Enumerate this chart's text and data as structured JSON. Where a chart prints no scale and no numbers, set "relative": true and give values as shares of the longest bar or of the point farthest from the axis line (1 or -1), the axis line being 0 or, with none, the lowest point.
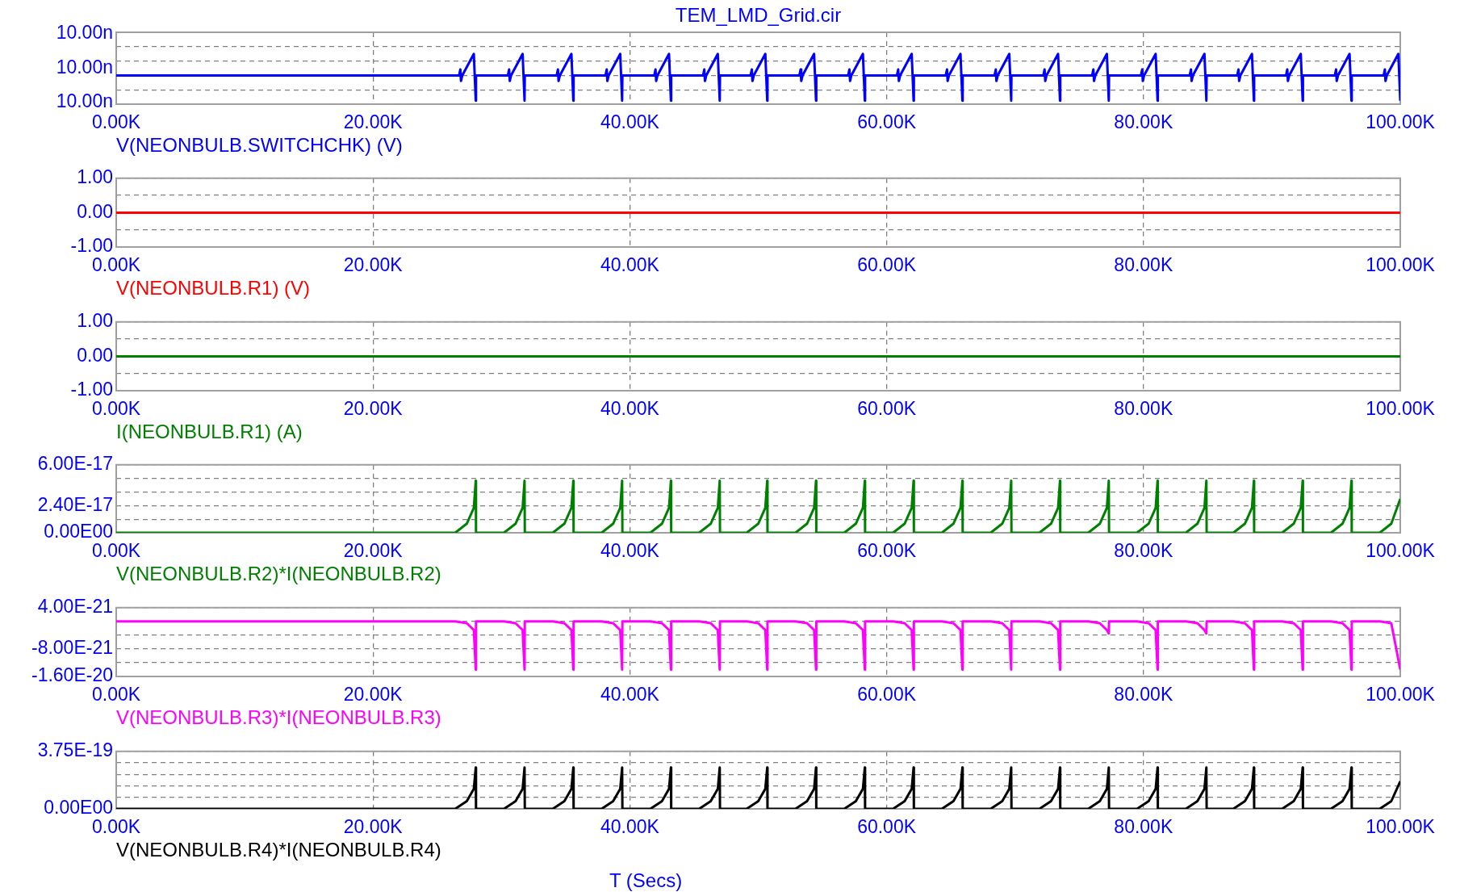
{
  "chart_data": [
    {
      "type": "line",
      "title": "TEM_LMD_Grid.cir",
      "relative": true,
      "annotations": [
        "10.00n",
        "10.00n",
        "10.00n"
      ],
      "grid": true,
      "legend": "bottom left",
      "marker": "none",
      "xlim": [
        0,
        100000
      ],
      "xticks": [
        {
          "value": 0,
          "label": "0.00K"
        },
        {
          "value": 20000,
          "label": "20.00K"
        },
        {
          "value": 40000,
          "label": "40.00K"
        },
        {
          "value": 60000,
          "label": "60.00K"
        },
        {
          "value": 80000,
          "label": "80.00K"
        },
        {
          "value": 100000,
          "label": "100.00K"
        }
      ],
      "x": [
        0,
        26700,
        26800,
        26850,
        26950,
        27850,
        28000,
        28020,
        30500,
        30600,
        30650,
        30750,
        31650,
        31800,
        31820,
        34300,
        34400,
        34450,
        34550,
        35450,
        35600,
        35620,
        38100,
        38200,
        38250,
        38350,
        39250,
        39400,
        39420,
        41900,
        42000,
        42050,
        42150,
        43050,
        43200,
        43220,
        45700,
        45800,
        45850,
        45950,
        46850,
        47000,
        47020,
        49400,
        49500,
        49550,
        49650,
        50550,
        50700,
        50720,
        53200,
        53300,
        53350,
        53450,
        54350,
        54500,
        54520,
        57000,
        57100,
        57150,
        57250,
        58150,
        58300,
        58320,
        60800,
        60900,
        60950,
        61050,
        61950,
        62100,
        62120,
        64600,
        64700,
        64750,
        64850,
        65750,
        65900,
        65920,
        68400,
        68500,
        68550,
        68650,
        69550,
        69700,
        69720,
        72200,
        72300,
        72350,
        72450,
        73350,
        73500,
        73520,
        76000,
        76100,
        76150,
        76250,
        77150,
        77300,
        77320,
        79800,
        79900,
        79950,
        80050,
        80950,
        81100,
        81120,
        83600,
        83700,
        83750,
        83850,
        84750,
        84900,
        84920,
        87300,
        87400,
        87450,
        87550,
        88450,
        88600,
        88620,
        91100,
        91200,
        91250,
        91350,
        92250,
        92400,
        92420,
        94900,
        95000,
        95050,
        95150,
        96050,
        96200,
        96220,
        98700,
        98800,
        98850,
        98950,
        99850,
        100000
      ],
      "series": [
        {
          "name": "V(NEONBULB.SWITCHCHK) (V)",
          "color": "#0000ff",
          "values": [
            0.57,
            0.57,
            0.69,
            0.46,
            0.57,
            1,
            0.07,
            0.57,
            0.57,
            0.69,
            0.46,
            0.57,
            1,
            0.07,
            0.57,
            0.57,
            0.69,
            0.46,
            0.57,
            1,
            0.07,
            0.57,
            0.57,
            0.69,
            0.46,
            0.57,
            1,
            0.07,
            0.57,
            0.57,
            0.69,
            0.46,
            0.57,
            1,
            0.07,
            0.57,
            0.57,
            0.69,
            0.46,
            0.57,
            1,
            0.07,
            0.57,
            0.57,
            0.69,
            0.46,
            0.57,
            1,
            0.07,
            0.57,
            0.57,
            0.69,
            0.46,
            0.57,
            1,
            0.07,
            0.57,
            0.57,
            0.69,
            0.46,
            0.57,
            1,
            0.07,
            0.57,
            0.57,
            0.69,
            0.46,
            0.57,
            1,
            0.07,
            0.57,
            0.57,
            0.69,
            0.46,
            0.57,
            1,
            0.07,
            0.57,
            0.57,
            0.69,
            0.46,
            0.57,
            1,
            0.07,
            0.57,
            0.57,
            0.69,
            0.46,
            0.57,
            1,
            0.07,
            0.57,
            0.57,
            0.69,
            0.46,
            0.57,
            1,
            0.07,
            0.57,
            0.57,
            0.69,
            0.46,
            0.57,
            1,
            0.07,
            0.57,
            0.57,
            0.69,
            0.46,
            0.57,
            1,
            0.07,
            0.57,
            0.57,
            0.69,
            0.46,
            0.57,
            1,
            0.07,
            0.57,
            0.57,
            0.69,
            0.46,
            0.57,
            1,
            0.07,
            0.57,
            0.57,
            0.69,
            0.46,
            0.57,
            1,
            0.07,
            0.57,
            0.57,
            0.69,
            0.46,
            0.57,
            1,
            0.07
          ]
        }
      ]
    },
    {
      "type": "line",
      "grid": true,
      "legend": "bottom left",
      "marker": "none",
      "xlim": [
        0,
        100000
      ],
      "xticks": [
        {
          "value": 0,
          "label": "0.00K"
        },
        {
          "value": 20000,
          "label": "20.00K"
        },
        {
          "value": 40000,
          "label": "40.00K"
        },
        {
          "value": 60000,
          "label": "60.00K"
        },
        {
          "value": 80000,
          "label": "80.00K"
        },
        {
          "value": 100000,
          "label": "100.00K"
        }
      ],
      "ylim": [
        -1,
        1
      ],
      "yticks": [
        {
          "value": -1,
          "label": "-1.00"
        },
        {
          "value": -0.5,
          "label": null
        },
        {
          "value": 0,
          "label": "0.00"
        },
        {
          "value": 0.5,
          "label": null
        },
        {
          "value": 1,
          "label": "1.00"
        }
      ],
      "x": [
        0,
        100000
      ],
      "series": [
        {
          "name": "V(NEONBULB.R1) (V)",
          "color": "#ff0000",
          "values": [
            0,
            0
          ]
        }
      ]
    },
    {
      "type": "line",
      "grid": true,
      "legend": "bottom left",
      "marker": "none",
      "xlim": [
        0,
        100000
      ],
      "xticks": [
        {
          "value": 0,
          "label": "0.00K"
        },
        {
          "value": 20000,
          "label": "20.00K"
        },
        {
          "value": 40000,
          "label": "40.00K"
        },
        {
          "value": 60000,
          "label": "60.00K"
        },
        {
          "value": 80000,
          "label": "80.00K"
        },
        {
          "value": 100000,
          "label": "100.00K"
        }
      ],
      "ylim": [
        -1,
        1
      ],
      "yticks": [
        {
          "value": -1,
          "label": "-1.00"
        },
        {
          "value": -0.5,
          "label": null
        },
        {
          "value": 0,
          "label": "0.00"
        },
        {
          "value": 0.5,
          "label": null
        },
        {
          "value": 1,
          "label": "1.00"
        }
      ],
      "x": [
        0,
        100000
      ],
      "series": [
        {
          "name": "I(NEONBULB.R1) (A)",
          "color": "#008000",
          "values": [
            0,
            0
          ]
        }
      ]
    },
    {
      "type": "line",
      "grid": true,
      "legend": "bottom left",
      "marker": "none",
      "xlim": [
        0,
        100000
      ],
      "xticks": [
        {
          "value": 0,
          "label": "0.00K"
        },
        {
          "value": 20000,
          "label": "20.00K"
        },
        {
          "value": 40000,
          "label": "40.00K"
        },
        {
          "value": 60000,
          "label": "60.00K"
        },
        {
          "value": 80000,
          "label": "80.00K"
        },
        {
          "value": 100000,
          "label": "100.00K"
        }
      ],
      "ylim": [
        0,
        6e-17
      ],
      "yticks": [
        {
          "value": 0,
          "label": "0.00E00"
        },
        {
          "value": 1.2e-17,
          "label": null
        },
        {
          "value": 2.4e-17,
          "label": "2.40E-17"
        },
        {
          "value": 3.6e-17,
          "label": null
        },
        {
          "value": 4.8e-17,
          "label": null
        },
        {
          "value": 6e-17,
          "label": "6.00E-17"
        }
      ],
      "x": [
        0,
        26400,
        27300,
        27850,
        28000,
        28020,
        30200,
        31100,
        31650,
        31800,
        31820,
        34000,
        34900,
        35450,
        35600,
        35620,
        37800,
        38700,
        39250,
        39400,
        39420,
        41600,
        42500,
        43050,
        43200,
        43220,
        45400,
        46300,
        46850,
        47000,
        47020,
        49100,
        50000,
        50550,
        50700,
        50720,
        52900,
        53800,
        54350,
        54500,
        54520,
        56700,
        57600,
        58150,
        58300,
        58320,
        60500,
        61400,
        61950,
        62100,
        62120,
        64300,
        65200,
        65750,
        65900,
        65920,
        68100,
        69000,
        69550,
        69700,
        69720,
        71900,
        72800,
        73350,
        73500,
        73520,
        75700,
        76600,
        77150,
        77300,
        77320,
        79500,
        80400,
        80950,
        81100,
        81120,
        83300,
        84200,
        84750,
        84900,
        84920,
        87000,
        87900,
        88450,
        88600,
        88620,
        90800,
        91700,
        92250,
        92400,
        92420,
        94600,
        95500,
        96050,
        96200,
        96220,
        98400,
        99300,
        100000
      ],
      "series": [
        {
          "name": "V(NEONBULB.R2)*I(NEONBULB.R2)",
          "color": "#008000",
          "values": [
            0,
            0,
            8e-18,
            2.2e-17,
            4.6e-17,
            0,
            0,
            8e-18,
            2.2e-17,
            4.6e-17,
            0,
            0,
            8e-18,
            2.2e-17,
            4.6e-17,
            0,
            0,
            8e-18,
            2.2e-17,
            4.6e-17,
            0,
            0,
            8e-18,
            2.2e-17,
            4.6e-17,
            0,
            0,
            8e-18,
            2.2e-17,
            4.6e-17,
            0,
            0,
            8e-18,
            2.2e-17,
            4.6e-17,
            0,
            0,
            8e-18,
            2.2e-17,
            4.6e-17,
            0,
            0,
            8e-18,
            2.2e-17,
            4.6e-17,
            0,
            0,
            8e-18,
            2.2e-17,
            4.6e-17,
            0,
            0,
            8e-18,
            2.2e-17,
            4.6e-17,
            0,
            0,
            8e-18,
            2.2e-17,
            4.6e-17,
            0,
            0,
            8e-18,
            2.2e-17,
            4.6e-17,
            0,
            0,
            8e-18,
            2.2e-17,
            4.6e-17,
            0,
            0,
            8e-18,
            2.2e-17,
            4.6e-17,
            0,
            0,
            8e-18,
            2.2e-17,
            4.6e-17,
            0,
            0,
            8e-18,
            2.2e-17,
            4.6e-17,
            0,
            0,
            8e-18,
            2.2e-17,
            4.6e-17,
            0,
            0,
            8e-18,
            2.2e-17,
            4.6e-17,
            0,
            0,
            8e-18,
            3e-17
          ]
        }
      ]
    },
    {
      "type": "line",
      "grid": true,
      "legend": "bottom left",
      "marker": "none",
      "xlim": [
        0,
        100000
      ],
      "xticks": [
        {
          "value": 0,
          "label": "0.00K"
        },
        {
          "value": 20000,
          "label": "20.00K"
        },
        {
          "value": 40000,
          "label": "40.00K"
        },
        {
          "value": 60000,
          "label": "60.00K"
        },
        {
          "value": 80000,
          "label": "80.00K"
        },
        {
          "value": 100000,
          "label": "100.00K"
        }
      ],
      "ylim": [
        -1.6e-20,
        4e-21
      ],
      "yticks": [
        {
          "value": -1.6e-20,
          "label": "-1.60E-20"
        },
        {
          "value": -1.2e-20,
          "label": null
        },
        {
          "value": -8e-21,
          "label": "-8.00E-21"
        },
        {
          "value": -4e-21,
          "label": null
        },
        {
          "value": 0,
          "label": null
        },
        {
          "value": 4e-21,
          "label": "4.00E-21"
        }
      ],
      "x": [
        0,
        26400,
        27300,
        27850,
        28000,
        28020,
        30200,
        31100,
        31650,
        31800,
        31820,
        34000,
        34900,
        35450,
        35600,
        35620,
        37800,
        38700,
        39250,
        39400,
        39420,
        41600,
        42500,
        43050,
        43200,
        43220,
        45400,
        46300,
        46850,
        47000,
        47020,
        49100,
        50000,
        50550,
        50700,
        50720,
        52900,
        53800,
        54350,
        54500,
        54520,
        56700,
        57600,
        58150,
        58300,
        58320,
        60500,
        61400,
        61950,
        62100,
        62120,
        64300,
        65200,
        65750,
        65900,
        65920,
        68100,
        69000,
        69550,
        69700,
        69720,
        71900,
        72800,
        73350,
        73500,
        73520,
        75700,
        76600,
        77150,
        77300,
        77320,
        79500,
        80400,
        80950,
        81100,
        81120,
        83300,
        84200,
        84750,
        84900,
        84920,
        87000,
        87900,
        88450,
        88600,
        88620,
        90800,
        91700,
        92250,
        92400,
        92420,
        94600,
        95500,
        96050,
        96200,
        96220,
        98400,
        99300,
        100000
      ],
      "series": [
        {
          "name": "V(NEONBULB.R3)*I(NEONBULB.R3)",
          "color": "#ff00ff",
          "values": [
            0,
            0,
            -5e-22,
            -2.5e-21,
            -1.4e-20,
            0,
            0,
            -5e-22,
            -2.5e-21,
            -1.4e-20,
            0,
            0,
            -5e-22,
            -2.5e-21,
            -1.4e-20,
            0,
            0,
            -5e-22,
            -2.5e-21,
            -1.4e-20,
            0,
            0,
            -5e-22,
            -2.5e-21,
            -1.4e-20,
            0,
            0,
            -5e-22,
            -2.5e-21,
            -1.4e-20,
            0,
            0,
            -5e-22,
            -2.5e-21,
            -1.4e-20,
            0,
            0,
            -5e-22,
            -2.5e-21,
            -1.4e-20,
            0,
            0,
            -5e-22,
            -2.5e-21,
            -1.4e-20,
            0,
            0,
            -5e-22,
            -2.5e-21,
            -1.4e-20,
            0,
            0,
            -5e-22,
            -2.5e-21,
            -1.4e-20,
            0,
            0,
            -5e-22,
            -2.5e-21,
            -1.4e-20,
            0,
            0,
            -5e-22,
            -2.5e-21,
            -1.4e-20,
            0,
            0,
            -5e-22,
            -2.5e-21,
            -3.5e-21,
            0,
            0,
            -5e-22,
            -2.5e-21,
            -1.4e-20,
            0,
            0,
            -5e-22,
            -2.5e-21,
            -3.5e-21,
            0,
            0,
            -5e-22,
            -2.5e-21,
            -1.4e-20,
            0,
            0,
            -5e-22,
            -2.5e-21,
            -1.4e-20,
            0,
            0,
            -5e-22,
            -2.5e-21,
            -1.4e-20,
            0,
            0,
            -5e-22,
            -1.4e-20
          ]
        }
      ]
    },
    {
      "type": "line",
      "grid": true,
      "legend": "bottom left",
      "marker": "none",
      "xlabel": "T (Secs)",
      "xlim": [
        0,
        100000
      ],
      "xticks": [
        {
          "value": 0,
          "label": "0.00K"
        },
        {
          "value": 20000,
          "label": "20.00K"
        },
        {
          "value": 40000,
          "label": "40.00K"
        },
        {
          "value": 60000,
          "label": "60.00K"
        },
        {
          "value": 80000,
          "label": "80.00K"
        },
        {
          "value": 100000,
          "label": "100.00K"
        }
      ],
      "ylim": [
        0,
        3.75e-19
      ],
      "yticks": [
        {
          "value": 0,
          "label": "0.00E00"
        },
        {
          "value": 7.5e-20,
          "label": null
        },
        {
          "value": 1.5e-19,
          "label": null
        },
        {
          "value": 2.25e-19,
          "label": null
        },
        {
          "value": 3e-19,
          "label": null
        },
        {
          "value": 3.75e-19,
          "label": "3.75E-19"
        }
      ],
      "x": [
        0,
        26400,
        27300,
        27850,
        28000,
        28020,
        30200,
        31100,
        31650,
        31800,
        31820,
        34000,
        34900,
        35450,
        35600,
        35620,
        37800,
        38700,
        39250,
        39400,
        39420,
        41600,
        42500,
        43050,
        43200,
        43220,
        45400,
        46300,
        46850,
        47000,
        47020,
        49100,
        50000,
        50550,
        50700,
        50720,
        52900,
        53800,
        54350,
        54500,
        54520,
        56700,
        57600,
        58150,
        58300,
        58320,
        60500,
        61400,
        61950,
        62100,
        62120,
        64300,
        65200,
        65750,
        65900,
        65920,
        68100,
        69000,
        69550,
        69700,
        69720,
        71900,
        72800,
        73350,
        73500,
        73520,
        75700,
        76600,
        77150,
        77300,
        77320,
        79500,
        80400,
        80950,
        81100,
        81120,
        83300,
        84200,
        84750,
        84900,
        84920,
        87000,
        87900,
        88450,
        88600,
        88620,
        90800,
        91700,
        92250,
        92400,
        92420,
        94600,
        95500,
        96050,
        96200,
        96220,
        98400,
        99300,
        100000
      ],
      "series": [
        {
          "name": "V(NEONBULB.R4)*I(NEONBULB.R4)",
          "color": "#000000",
          "values": [
            0,
            0,
            5e-20,
            1.3e-19,
            2.7e-19,
            0,
            0,
            5e-20,
            1.3e-19,
            2.7e-19,
            0,
            0,
            5e-20,
            1.3e-19,
            2.7e-19,
            0,
            0,
            5e-20,
            1.3e-19,
            2.7e-19,
            0,
            0,
            5e-20,
            1.3e-19,
            2.7e-19,
            0,
            0,
            5e-20,
            1.3e-19,
            2.7e-19,
            0,
            0,
            5e-20,
            1.3e-19,
            2.7e-19,
            0,
            0,
            5e-20,
            1.3e-19,
            2.7e-19,
            0,
            0,
            5e-20,
            1.3e-19,
            2.7e-19,
            0,
            0,
            5e-20,
            1.3e-19,
            2.7e-19,
            0,
            0,
            5e-20,
            1.3e-19,
            2.7e-19,
            0,
            0,
            5e-20,
            1.3e-19,
            2.7e-19,
            0,
            0,
            5e-20,
            1.3e-19,
            2.7e-19,
            0,
            0,
            5e-20,
            1.3e-19,
            2.7e-19,
            0,
            0,
            5e-20,
            1.3e-19,
            2.7e-19,
            0,
            0,
            5e-20,
            1.3e-19,
            2.7e-19,
            0,
            0,
            5e-20,
            1.3e-19,
            2.7e-19,
            0,
            0,
            5e-20,
            1.3e-19,
            2.7e-19,
            0,
            0,
            5e-20,
            1.3e-19,
            2.7e-19,
            0,
            0,
            5e-20,
            1.8e-19
          ]
        }
      ]
    }
  ]
}
